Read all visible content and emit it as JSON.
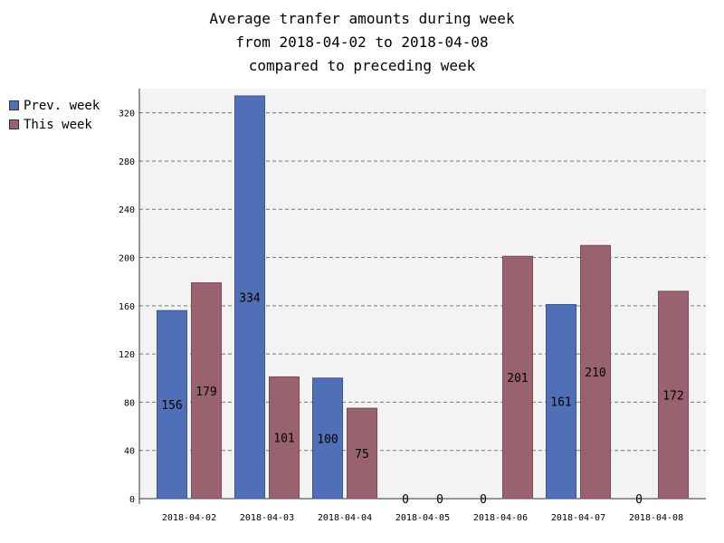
{
  "title_lines": [
    "Average tranfer amounts during week",
    "from 2018-04-02 to 2018-04-08",
    "compared to preceding week"
  ],
  "legend": [
    {
      "label": "Prev. week",
      "color": "#4f6fb6"
    },
    {
      "label": "This week",
      "color": "#9a6270"
    }
  ],
  "chart_data": {
    "type": "bar",
    "title": "Average tranfer amounts during week from 2018-04-02 to 2018-04-08 compared to preceding week",
    "categories": [
      "2018-04-02",
      "2018-04-03",
      "2018-04-04",
      "2018-04-05",
      "2018-04-06",
      "2018-04-07",
      "2018-04-08"
    ],
    "series": [
      {
        "name": "Prev. week",
        "color": "#4f6fb6",
        "values": [
          156,
          334,
          100,
          0,
          0,
          161,
          0
        ]
      },
      {
        "name": "This week",
        "color": "#9a6270",
        "values": [
          179,
          101,
          75,
          0,
          201,
          210,
          172
        ]
      }
    ],
    "ylim": [
      0,
      340
    ],
    "yticks": [
      0,
      40,
      80,
      120,
      160,
      200,
      240,
      280,
      320
    ],
    "grid": true,
    "legend_position": "left"
  }
}
